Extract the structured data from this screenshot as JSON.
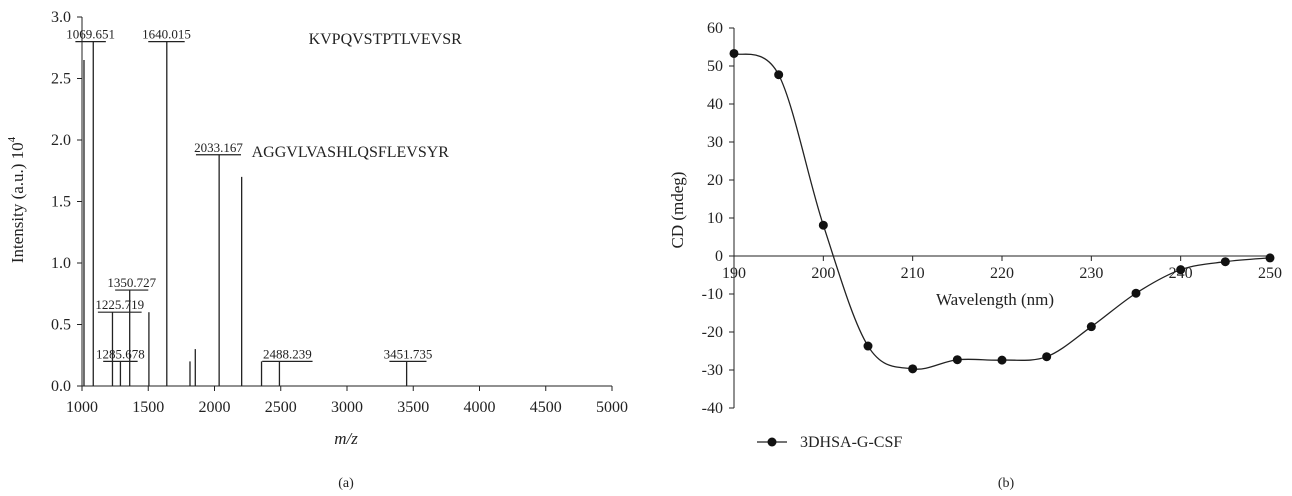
{
  "chart_data": [
    {
      "type": "bar",
      "panel_label": "(a)",
      "xlabel": "m/z",
      "ylabel": "Intensity (a.u.) 10",
      "ylabel_superscript": "4",
      "xlim": [
        1000,
        5000
      ],
      "ylim": [
        0,
        3.0
      ],
      "xticks": [
        "1000",
        "1500",
        "2000",
        "2500",
        "3000",
        "3500",
        "4000",
        "4500",
        "5000"
      ],
      "yticks": [
        "0.0",
        "0.5",
        "1.0",
        "1.5",
        "2.0",
        "2.5",
        "3.0"
      ],
      "peaks": [
        {
          "x": 1015,
          "y": 2.65
        },
        {
          "x": 1085,
          "y": 2.8
        },
        {
          "x": 1230,
          "y": 0.6
        },
        {
          "x": 1290,
          "y": 0.2
        },
        {
          "x": 1360,
          "y": 0.78
        },
        {
          "x": 1505,
          "y": 0.6
        },
        {
          "x": 1640,
          "y": 2.8
        },
        {
          "x": 1815,
          "y": 0.2
        },
        {
          "x": 1855,
          "y": 0.3
        },
        {
          "x": 2035,
          "y": 1.88
        },
        {
          "x": 2205,
          "y": 1.7
        },
        {
          "x": 2355,
          "y": 0.2
        },
        {
          "x": 2490,
          "y": 0.2
        },
        {
          "x": 3450,
          "y": 0.2
        }
      ],
      "annotations": [
        {
          "label": "1069.651",
          "x": 1075,
          "y": 2.8,
          "x_from": 950,
          "x_to": 1180
        },
        {
          "label": "1640.015",
          "x": 1640,
          "y": 2.8,
          "x_from": 1500,
          "x_to": 1775
        },
        {
          "label": "2033.167",
          "x": 2035,
          "y": 1.88,
          "x_from": 1860,
          "x_to": 2200
        },
        {
          "label": "1350.727",
          "x": 1360,
          "y": 0.78,
          "x_from": 1250,
          "x_to": 1500
        },
        {
          "label": "1225.719",
          "x": 1230,
          "y": 0.6,
          "x_from": 1120,
          "x_to": 1450
        },
        {
          "label": "1285.678",
          "x": 1290,
          "y": 0.2,
          "x_from": 1160,
          "x_to": 1420
        },
        {
          "label": "2488.239",
          "x": 2490,
          "y": 0.2,
          "x_from": 2360,
          "x_to": 2740
        },
        {
          "label": "3451.735",
          "x": 3451,
          "y": 0.2,
          "x_from": 3320,
          "x_to": 3600
        }
      ],
      "sequences": [
        {
          "text": "KVPQVSTPTLVEVSR",
          "x": 2710,
          "y": 2.78
        },
        {
          "text": "AGGVLVASHLQSFLEVSYR",
          "x": 2280,
          "y": 1.86
        }
      ]
    },
    {
      "type": "line",
      "panel_label": "(b)",
      "xlabel": "Wavelength (nm)",
      "ylabel": "CD (mdeg)",
      "xlim": [
        190,
        250
      ],
      "ylim": [
        -40,
        60
      ],
      "xticks": [
        "190",
        "200",
        "210",
        "220",
        "230",
        "240",
        "250"
      ],
      "yticks": [
        "-40",
        "-30",
        "-20",
        "-10",
        "0",
        "10",
        "20",
        "30",
        "40",
        "50",
        "60"
      ],
      "legend_position": "bottom-left",
      "series": [
        {
          "name": "3DHSA-G-CSF",
          "x": [
            190,
            195,
            200,
            205,
            210,
            215,
            220,
            225,
            230,
            235,
            240,
            245,
            250
          ],
          "y": [
            53.3,
            47.7,
            8.1,
            -23.7,
            -29.7,
            -27.3,
            -27.4,
            -26.5,
            -18.6,
            -9.8,
            -3.6,
            -1.5,
            -0.5
          ]
        }
      ]
    }
  ]
}
